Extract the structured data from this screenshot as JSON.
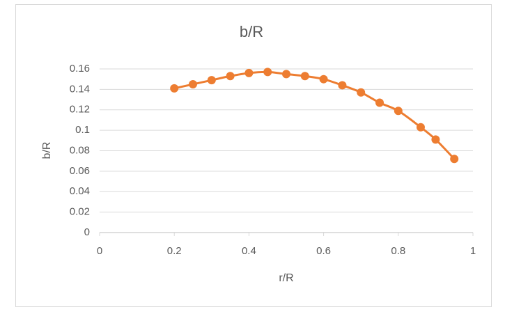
{
  "chart_data": {
    "type": "scatter",
    "title": "b/R",
    "x_label": "r/R",
    "y_label": "b/R",
    "series": [
      {
        "name": "b/R",
        "color": "#ed7d31",
        "x": [
          0.2,
          0.25,
          0.3,
          0.35,
          0.4,
          0.45,
          0.5,
          0.55,
          0.6,
          0.65,
          0.7,
          0.75,
          0.8,
          0.86,
          0.9,
          0.95
        ],
        "values": [
          0.141,
          0.145,
          0.149,
          0.153,
          0.156,
          0.157,
          0.155,
          0.153,
          0.15,
          0.144,
          0.137,
          0.127,
          0.119,
          0.103,
          0.091,
          0.072
        ]
      }
    ],
    "xlim": [
      0,
      1
    ],
    "xticks": [
      0,
      0.2,
      0.4,
      0.6,
      0.8,
      1
    ],
    "ylim": [
      0,
      0.16
    ],
    "yticks": [
      0,
      0.02,
      0.04,
      0.06,
      0.08,
      0.1,
      0.12,
      0.14,
      0.16
    ],
    "grid": true,
    "smooth": true
  }
}
